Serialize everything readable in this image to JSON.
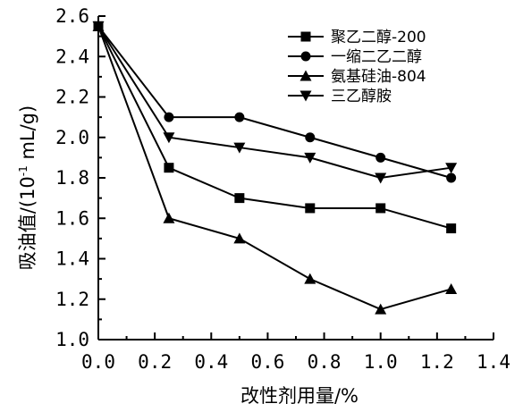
{
  "chart_data": {
    "type": "line",
    "xlabel": "改性剂用量/%",
    "ylabel_main": "吸油值/(10",
    "ylabel_sup": "-1",
    "ylabel_tail": " mL/g)",
    "xlim": [
      0.0,
      1.4
    ],
    "ylim": [
      1.0,
      2.6
    ],
    "x_ticks": [
      "0.0",
      "0.2",
      "0.4",
      "0.6",
      "0.8",
      "1.0",
      "1.2",
      "1.4"
    ],
    "y_ticks": [
      "1.0",
      "1.2",
      "1.4",
      "1.6",
      "1.8",
      "2.0",
      "2.2",
      "2.4",
      "2.6"
    ],
    "grid": false,
    "legend_position": "top-right",
    "series": [
      {
        "name": "聚乙二醇-200",
        "marker": "square",
        "x": [
          0.0,
          0.25,
          0.5,
          0.75,
          1.0,
          1.25
        ],
        "y": [
          2.55,
          1.85,
          1.7,
          1.65,
          1.65,
          1.55
        ]
      },
      {
        "name": "一缩二乙二醇",
        "marker": "circle",
        "x": [
          0.0,
          0.25,
          0.5,
          0.75,
          1.0,
          1.25
        ],
        "y": [
          2.55,
          2.1,
          2.1,
          2.0,
          1.9,
          1.8
        ]
      },
      {
        "name": "氨基硅油-804",
        "marker": "triangle-up",
        "x": [
          0.0,
          0.25,
          0.5,
          0.75,
          1.0,
          1.25
        ],
        "y": [
          2.55,
          1.6,
          1.5,
          1.3,
          1.15,
          1.25
        ]
      },
      {
        "name": "三乙醇胺",
        "marker": "triangle-down",
        "x": [
          0.0,
          0.25,
          0.5,
          0.75,
          1.0,
          1.25
        ],
        "y": [
          2.55,
          2.0,
          1.95,
          1.9,
          1.8,
          1.85
        ]
      }
    ]
  }
}
